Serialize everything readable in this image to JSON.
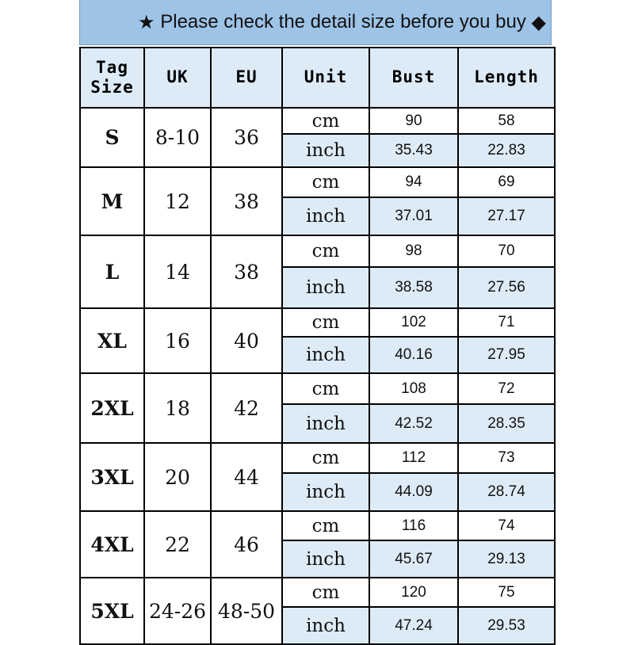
{
  "banner": {
    "star_icon": "★",
    "text": "Please check the detail size before you buy",
    "diamond_icon": "◆"
  },
  "headers": [
    "Tag\nSize",
    "UK",
    "EU",
    "Unit",
    "Bust",
    "Length"
  ],
  "colors": {
    "banner": "#9dc3e6",
    "header": "#ddebf7"
  },
  "rows": [
    {
      "tag": "S",
      "uk": "8-10",
      "eu": "36",
      "cm": {
        "unit": "cm",
        "bust": "90",
        "length": "58"
      },
      "inch": {
        "unit": "inch",
        "bust": "35.43",
        "length": "22.83"
      }
    },
    {
      "tag": "M",
      "uk": "12",
      "eu": "38",
      "cm": {
        "unit": "cm",
        "bust": "94",
        "length": "69"
      },
      "inch": {
        "unit": "inch",
        "bust": "37.01",
        "length": "27.17"
      }
    },
    {
      "tag": "L",
      "uk": "14",
      "eu": "38",
      "cm": {
        "unit": "cm",
        "bust": "98",
        "length": "70"
      },
      "inch": {
        "unit": "inch",
        "bust": "38.58",
        "length": "27.56"
      }
    },
    {
      "tag": "XL",
      "uk": "16",
      "eu": "40",
      "cm": {
        "unit": "cm",
        "bust": "102",
        "length": "71"
      },
      "inch": {
        "unit": "inch",
        "bust": "40.16",
        "length": "27.95"
      }
    },
    {
      "tag": "2XL",
      "uk": "18",
      "eu": "42",
      "cm": {
        "unit": "cm",
        "bust": "108",
        "length": "72"
      },
      "inch": {
        "unit": "inch",
        "bust": "42.52",
        "length": "28.35"
      }
    },
    {
      "tag": "3XL",
      "uk": "20",
      "eu": "44",
      "cm": {
        "unit": "cm",
        "bust": "112",
        "length": "73"
      },
      "inch": {
        "unit": "inch",
        "bust": "44.09",
        "length": "28.74"
      }
    },
    {
      "tag": "4XL",
      "uk": "22",
      "eu": "46",
      "cm": {
        "unit": "cm",
        "bust": "116",
        "length": "74"
      },
      "inch": {
        "unit": "inch",
        "bust": "45.67",
        "length": "29.13"
      }
    },
    {
      "tag": "5XL",
      "uk": "24-26",
      "eu": "48-50",
      "cm": {
        "unit": "cm",
        "bust": "120",
        "length": "75"
      },
      "inch": {
        "unit": "inch",
        "bust": "47.24",
        "length": "29.53"
      }
    }
  ]
}
